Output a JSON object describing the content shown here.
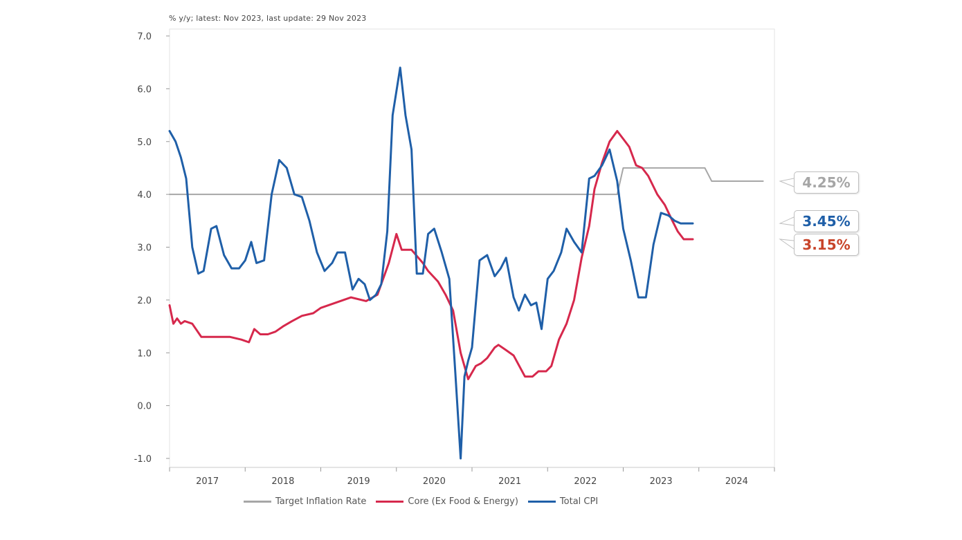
{
  "note": "% y/y; latest: Nov 2023, last update: 29 Nov 2023",
  "legend": [
    {
      "label": "Target Inflation Rate",
      "color": "#a6a6a6"
    },
    {
      "label": "Core (Ex Food & Energy)",
      "color": "#d6284c"
    },
    {
      "label": "Total CPI",
      "color": "#1f5fa8"
    }
  ],
  "callouts": [
    {
      "text": "4.25%",
      "value": 4.25,
      "color": "#a6a6a6"
    },
    {
      "text": "3.45%",
      "value": 3.45,
      "color": "#1f5fa8"
    },
    {
      "text": "3.15%",
      "value": 3.15,
      "color": "#c8442a"
    }
  ],
  "chart_data": {
    "type": "line",
    "title": "",
    "xlabel": "",
    "ylabel": "",
    "ylim": [
      -1.0,
      7.0
    ],
    "xlim": [
      2017.0,
      2025.0
    ],
    "y_ticks": [
      "7.0",
      "6.0",
      "5.0",
      "4.0",
      "3.0",
      "2.0",
      "1.0",
      "0.0",
      "-1.0"
    ],
    "x_ticks": [
      "2017",
      "2018",
      "2019",
      "2020",
      "2021",
      "2022",
      "2023",
      "2024"
    ],
    "grid": false,
    "legend_position": "bottom",
    "series": [
      {
        "name": "Target Inflation Rate",
        "color": "#a6a6a6",
        "x": [
          2017.0,
          2022.92,
          2023.0,
          2024.08,
          2024.17,
          2024.85
        ],
        "y": [
          4.0,
          4.0,
          4.5,
          4.5,
          4.25,
          4.25
        ]
      },
      {
        "name": "Core (Ex Food & Energy)",
        "color": "#d6284c",
        "x": [
          2017.0,
          2017.05,
          2017.1,
          2017.15,
          2017.2,
          2017.3,
          2017.42,
          2017.6,
          2017.8,
          2017.95,
          2018.05,
          2018.12,
          2018.2,
          2018.3,
          2018.4,
          2018.5,
          2018.62,
          2018.75,
          2018.9,
          2019.0,
          2019.2,
          2019.4,
          2019.6,
          2019.75,
          2019.9,
          2020.0,
          2020.07,
          2020.2,
          2020.35,
          2020.42,
          2020.55,
          2020.65,
          2020.75,
          2020.85,
          2020.95,
          2021.05,
          2021.12,
          2021.2,
          2021.3,
          2021.35,
          2021.45,
          2021.55,
          2021.7,
          2021.8,
          2021.88,
          2021.98,
          2022.05,
          2022.15,
          2022.25,
          2022.35,
          2022.45,
          2022.55,
          2022.62,
          2022.72,
          2022.82,
          2022.92,
          2023.0,
          2023.08,
          2023.17,
          2023.25,
          2023.33,
          2023.45,
          2023.55,
          2023.65,
          2023.72,
          2023.8,
          2023.85,
          2023.92
        ],
        "y": [
          1.9,
          1.55,
          1.65,
          1.55,
          1.6,
          1.55,
          1.3,
          1.3,
          1.3,
          1.25,
          1.2,
          1.45,
          1.35,
          1.35,
          1.4,
          1.5,
          1.6,
          1.7,
          1.75,
          1.85,
          1.95,
          2.05,
          1.98,
          2.1,
          2.7,
          3.25,
          2.95,
          2.95,
          2.7,
          2.55,
          2.35,
          2.1,
          1.8,
          1.0,
          0.5,
          0.75,
          0.8,
          0.9,
          1.1,
          1.15,
          1.05,
          0.95,
          0.55,
          0.55,
          0.65,
          0.65,
          0.75,
          1.25,
          1.55,
          2.0,
          2.8,
          3.4,
          4.1,
          4.6,
          5.0,
          5.2,
          5.05,
          4.9,
          4.55,
          4.5,
          4.35,
          4.0,
          3.8,
          3.5,
          3.3,
          3.15,
          3.15,
          3.15
        ]
      },
      {
        "name": "Total CPI",
        "color": "#1f5fa8",
        "x": [
          2017.0,
          2017.08,
          2017.15,
          2017.22,
          2017.3,
          2017.38,
          2017.45,
          2017.55,
          2017.62,
          2017.72,
          2017.82,
          2017.92,
          2018.0,
          2018.08,
          2018.15,
          2018.25,
          2018.35,
          2018.45,
          2018.55,
          2018.65,
          2018.75,
          2018.85,
          2018.95,
          2019.05,
          2019.15,
          2019.22,
          2019.32,
          2019.42,
          2019.5,
          2019.58,
          2019.65,
          2019.73,
          2019.8,
          2019.88,
          2019.95,
          2020.05,
          2020.12,
          2020.2,
          2020.27,
          2020.35,
          2020.42,
          2020.5,
          2020.6,
          2020.7,
          2020.78,
          2020.85,
          2020.9,
          2020.95,
          2021.0,
          2021.1,
          2021.2,
          2021.3,
          2021.38,
          2021.45,
          2021.55,
          2021.62,
          2021.7,
          2021.78,
          2021.85,
          2021.92,
          2022.0,
          2022.08,
          2022.18,
          2022.25,
          2022.35,
          2022.45,
          2022.55,
          2022.62,
          2022.72,
          2022.82,
          2022.92,
          2023.0,
          2023.1,
          2023.2,
          2023.3,
          2023.4,
          2023.5,
          2023.6,
          2023.68,
          2023.76,
          2023.84,
          2023.92
        ],
        "y": [
          5.2,
          5.0,
          4.7,
          4.3,
          3.0,
          2.5,
          2.55,
          3.35,
          3.4,
          2.85,
          2.6,
          2.6,
          2.75,
          3.1,
          2.7,
          2.75,
          4.0,
          4.65,
          4.5,
          4.0,
          3.95,
          3.5,
          2.9,
          2.55,
          2.7,
          2.9,
          2.9,
          2.2,
          2.4,
          2.3,
          2.0,
          2.1,
          2.3,
          3.3,
          5.5,
          6.4,
          5.5,
          4.85,
          2.5,
          2.5,
          3.25,
          3.35,
          2.9,
          2.4,
          0.6,
          -1.0,
          0.55,
          0.85,
          1.1,
          2.75,
          2.85,
          2.45,
          2.6,
          2.8,
          2.05,
          1.8,
          2.1,
          1.9,
          1.95,
          1.45,
          2.4,
          2.55,
          2.9,
          3.35,
          3.1,
          2.9,
          4.3,
          4.35,
          4.55,
          4.85,
          4.25,
          3.35,
          2.75,
          2.05,
          2.05,
          3.05,
          3.65,
          3.6,
          3.5,
          3.45,
          3.45,
          3.45
        ]
      }
    ]
  }
}
